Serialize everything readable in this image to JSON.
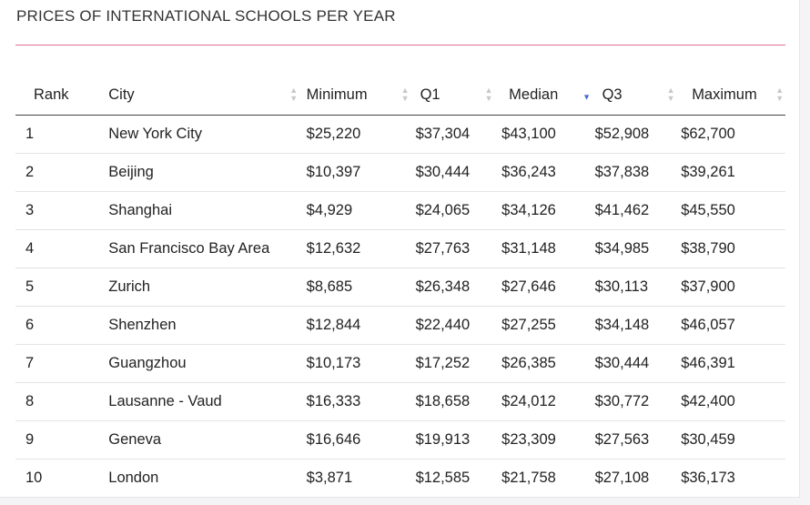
{
  "title": "PRICES OF INTERNATIONAL SCHOOLS PER YEAR",
  "columns": {
    "rank": "Rank",
    "city": "City",
    "minimum": "Minimum",
    "q1": "Q1",
    "median": "Median",
    "q3": "Q3",
    "maximum": "Maximum"
  },
  "sort": {
    "column": "Median",
    "direction": "descending"
  },
  "colors": {
    "accent_rule": "#e36f92",
    "sort_active": "#4a64d4",
    "sort_inactive": "#c8c8cc"
  },
  "rows": [
    {
      "rank": "1",
      "city": "New York City",
      "minimum": "$25,220",
      "q1": "$37,304",
      "median": "$43,100",
      "q3": "$52,908",
      "maximum": "$62,700"
    },
    {
      "rank": "2",
      "city": "Beijing",
      "minimum": "$10,397",
      "q1": "$30,444",
      "median": "$36,243",
      "q3": "$37,838",
      "maximum": "$39,261"
    },
    {
      "rank": "3",
      "city": "Shanghai",
      "minimum": "$4,929",
      "q1": "$24,065",
      "median": "$34,126",
      "q3": "$41,462",
      "maximum": "$45,550"
    },
    {
      "rank": "4",
      "city": "San Francisco Bay Area",
      "minimum": "$12,632",
      "q1": "$27,763",
      "median": "$31,148",
      "q3": "$34,985",
      "maximum": "$38,790"
    },
    {
      "rank": "5",
      "city": "Zurich",
      "minimum": "$8,685",
      "q1": "$26,348",
      "median": "$27,646",
      "q3": "$30,113",
      "maximum": "$37,900"
    },
    {
      "rank": "6",
      "city": "Shenzhen",
      "minimum": "$12,844",
      "q1": "$22,440",
      "median": "$27,255",
      "q3": "$34,148",
      "maximum": "$46,057"
    },
    {
      "rank": "7",
      "city": "Guangzhou",
      "minimum": "$10,173",
      "q1": "$17,252",
      "median": "$26,385",
      "q3": "$30,444",
      "maximum": "$46,391"
    },
    {
      "rank": "8",
      "city": "Lausanne - Vaud",
      "minimum": "$16,333",
      "q1": "$18,658",
      "median": "$24,012",
      "q3": "$30,772",
      "maximum": "$42,400"
    },
    {
      "rank": "9",
      "city": "Geneva",
      "minimum": "$16,646",
      "q1": "$19,913",
      "median": "$23,309",
      "q3": "$27,563",
      "maximum": "$30,459"
    },
    {
      "rank": "10",
      "city": "London",
      "minimum": "$3,871",
      "q1": "$12,585",
      "median": "$21,758",
      "q3": "$27,108",
      "maximum": "$36,173"
    }
  ]
}
